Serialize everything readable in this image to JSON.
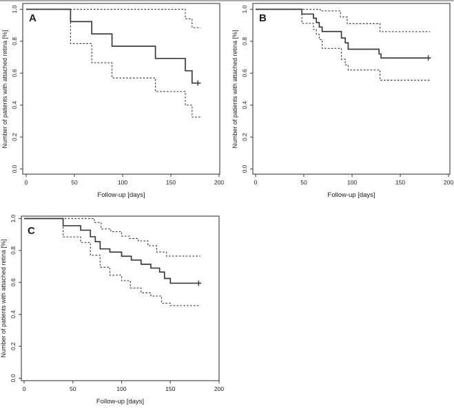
{
  "figure": {
    "background": "#ffffff",
    "line_color": "#3b3b3b",
    "ci_line_color": "#3b3b3b",
    "axis_color": "#4a4a4a",
    "text_color": "#1c1c1c",
    "xlabel": "Follow-up [days]",
    "ylabel": "Number of patients with attached retina [%]",
    "x_ticks": [
      0,
      50,
      100,
      150,
      200
    ],
    "y_ticks": [
      0.0,
      0.2,
      0.4,
      0.6,
      0.8,
      1.0
    ],
    "xlim": [
      0,
      200
    ],
    "ylim": [
      0.0,
      1.0
    ],
    "legend": "none",
    "grid": false
  },
  "chart_data": [
    {
      "type": "line",
      "subtype": "kaplan-meier-step",
      "panel_label": "A",
      "xlabel": "Follow-up [days]",
      "ylabel": "Number of patients with attached retina [%]",
      "end_x": 181,
      "censor_mark": {
        "x": 178,
        "y": 0.538
      },
      "series": [
        {
          "name": "survival-estimate",
          "style": "solid",
          "steps": [
            [
              0,
              1.0
            ],
            [
              46,
              0.923
            ],
            [
              68,
              0.846
            ],
            [
              89,
              0.769
            ],
            [
              134,
              0.692
            ],
            [
              165,
              0.615
            ],
            [
              172,
              0.538
            ]
          ]
        },
        {
          "name": "upper-95ci",
          "style": "dashed",
          "steps": [
            [
              0,
              1.0
            ],
            [
              165,
              0.94
            ],
            [
              172,
              0.885
            ]
          ]
        },
        {
          "name": "lower-95ci",
          "style": "dashed",
          "steps": [
            [
              0,
              1.0
            ],
            [
              46,
              0.785
            ],
            [
              68,
              0.665
            ],
            [
              89,
              0.57
            ],
            [
              134,
              0.485
            ],
            [
              165,
              0.4
            ],
            [
              172,
              0.325
            ]
          ]
        }
      ]
    },
    {
      "type": "line",
      "subtype": "kaplan-meier-step",
      "panel_label": "B",
      "xlabel": "Follow-up [days]",
      "ylabel": "Number of patients with attached retina [%]",
      "end_x": 181,
      "censor_mark": {
        "x": 179,
        "y": 0.695
      },
      "series": [
        {
          "name": "survival-estimate",
          "style": "solid",
          "steps": [
            [
              0,
              1.0
            ],
            [
              48,
              0.97
            ],
            [
              60,
              0.944
            ],
            [
              63,
              0.917
            ],
            [
              66,
              0.889
            ],
            [
              69,
              0.861
            ],
            [
              89,
              0.82
            ],
            [
              93,
              0.79
            ],
            [
              96,
              0.75
            ],
            [
              128,
              0.72
            ],
            [
              130,
              0.695
            ]
          ]
        },
        {
          "name": "upper-95ci",
          "style": "dashed",
          "steps": [
            [
              0,
              1.0
            ],
            [
              67,
              0.99
            ],
            [
              88,
              0.952
            ],
            [
              95,
              0.91
            ],
            [
              129,
              0.86
            ]
          ]
        },
        {
          "name": "lower-95ci",
          "style": "dashed",
          "steps": [
            [
              0,
              1.0
            ],
            [
              48,
              0.912
            ],
            [
              60,
              0.873
            ],
            [
              63,
              0.843
            ],
            [
              66,
              0.81
            ],
            [
              69,
              0.755
            ],
            [
              89,
              0.687
            ],
            [
              93,
              0.652
            ],
            [
              96,
              0.62
            ],
            [
              129,
              0.556
            ]
          ]
        }
      ]
    },
    {
      "type": "line",
      "subtype": "kaplan-meier-step",
      "panel_label": "C",
      "xlabel": "Follow-up [days]",
      "ylabel": "Number of patients with attached retina [%]",
      "end_x": 181,
      "censor_mark": {
        "x": 179,
        "y": 0.595
      },
      "series": [
        {
          "name": "survival-estimate",
          "style": "solid",
          "steps": [
            [
              0,
              1.0
            ],
            [
              40,
              0.955
            ],
            [
              58,
              0.927
            ],
            [
              68,
              0.886
            ],
            [
              73,
              0.855
            ],
            [
              78,
              0.81
            ],
            [
              88,
              0.79
            ],
            [
              100,
              0.764
            ],
            [
              110,
              0.74
            ],
            [
              120,
              0.714
            ],
            [
              130,
              0.69
            ],
            [
              139,
              0.665
            ],
            [
              144,
              0.625
            ],
            [
              150,
              0.595
            ]
          ]
        },
        {
          "name": "upper-95ci",
          "style": "dashed",
          "steps": [
            [
              0,
              1.0
            ],
            [
              72,
              0.975
            ],
            [
              79,
              0.935
            ],
            [
              89,
              0.918
            ],
            [
              100,
              0.89
            ],
            [
              108,
              0.875
            ],
            [
              117,
              0.86
            ],
            [
              127,
              0.83
            ],
            [
              136,
              0.79
            ],
            [
              146,
              0.765
            ]
          ]
        },
        {
          "name": "lower-95ci",
          "style": "dashed",
          "steps": [
            [
              0,
              1.0
            ],
            [
              40,
              0.885
            ],
            [
              58,
              0.85
            ],
            [
              68,
              0.77
            ],
            [
              78,
              0.695
            ],
            [
              88,
              0.645
            ],
            [
              100,
              0.61
            ],
            [
              109,
              0.565
            ],
            [
              120,
              0.535
            ],
            [
              130,
              0.515
            ],
            [
              141,
              0.47
            ],
            [
              150,
              0.455
            ]
          ]
        }
      ]
    }
  ]
}
